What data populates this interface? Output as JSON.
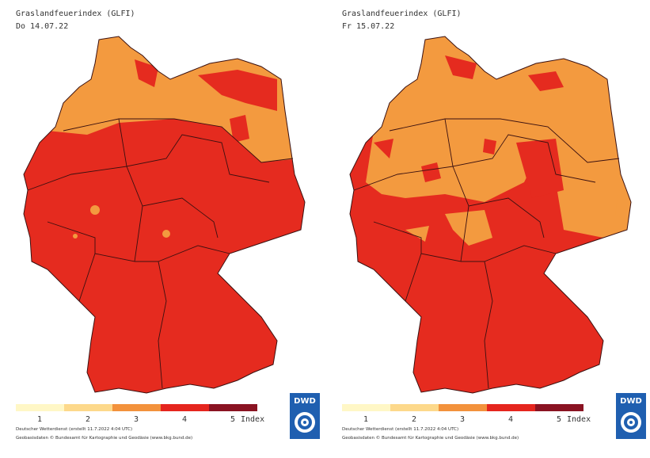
{
  "maps": [
    {
      "title": "Graslandfeuerindex (GLFI)",
      "date": "Do 14.07.22",
      "legend": {
        "labels": [
          1,
          2,
          3,
          4,
          5
        ],
        "unit": "Index",
        "colors": [
          "#fff7c6",
          "#fdd98b",
          "#f3923c",
          "#e5251e",
          "#8a1322"
        ]
      },
      "footer": [
        "Deutscher Wetterdienst (erstellt 11.7.2022 4:04 UTC)",
        "Geobasisdaten © Bundesamt für Kartographie und Geodäsie (www.bkg.bund.de)"
      ],
      "logo": "DWD"
    },
    {
      "title": "Graslandfeuerindex (GLFI)",
      "date": "Fr 15.07.22",
      "legend": {
        "labels": [
          1,
          2,
          3,
          4,
          5
        ],
        "unit": "Index",
        "colors": [
          "#fff7c6",
          "#fdd98b",
          "#f3923c",
          "#e5251e",
          "#8a1322"
        ]
      },
      "footer": [
        "Deutscher Wetterdienst (erstellt 11.7.2022 4:04 UTC)",
        "Geobasisdaten © Bundesamt für Kartographie und Geodäsie (www.bkg.bund.de)"
      ],
      "logo": "DWD"
    }
  ]
}
